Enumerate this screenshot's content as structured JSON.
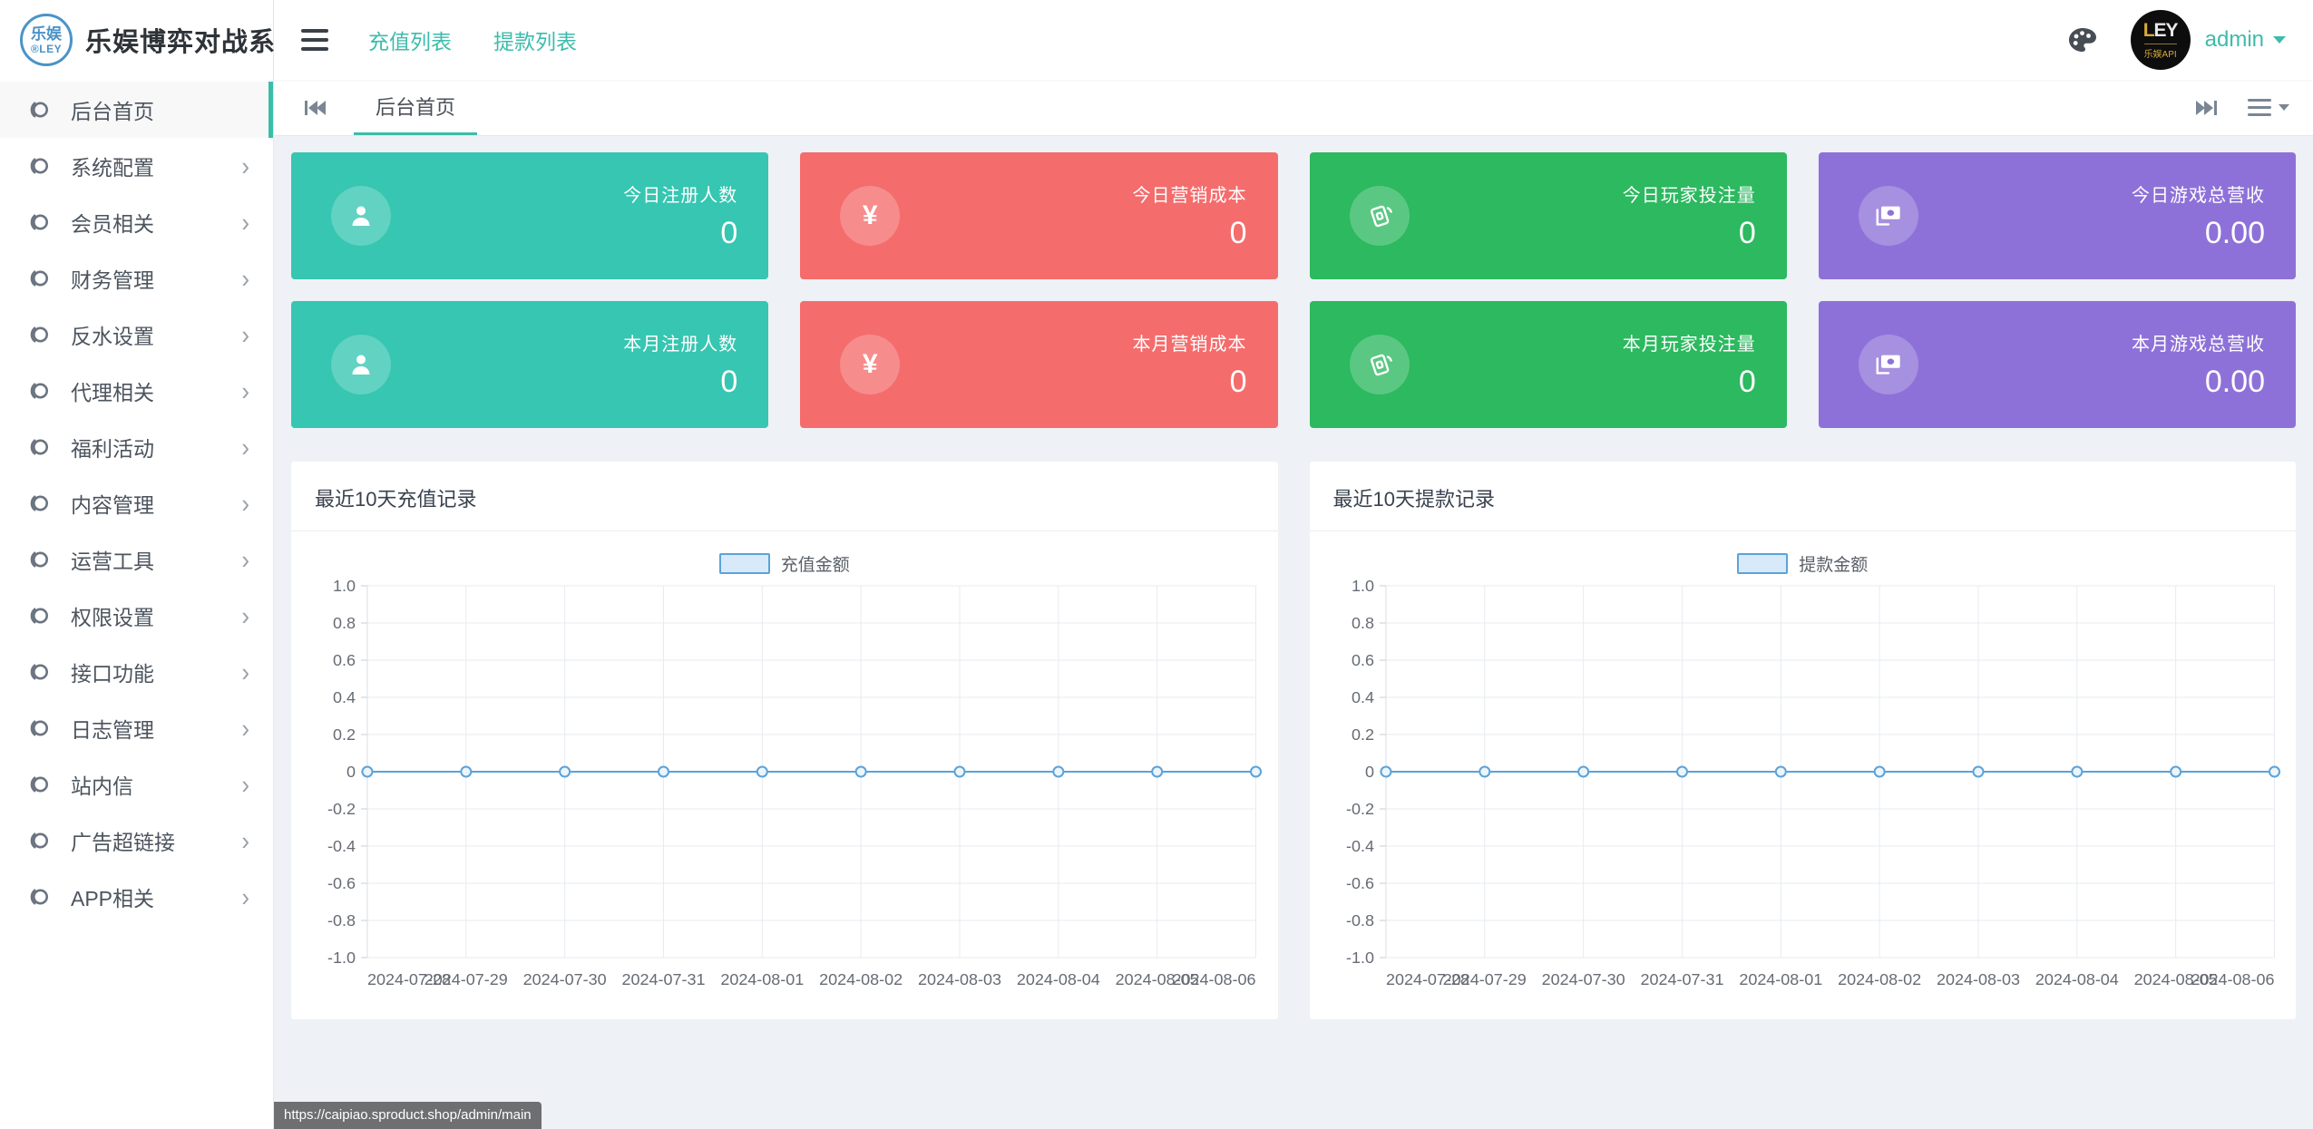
{
  "header": {
    "logo_badge_top": "乐娱",
    "logo_badge_bottom": "®LEY",
    "logo_text": "乐娱博弈对战系统",
    "nav": [
      {
        "label": "充值列表"
      },
      {
        "label": "提款列表"
      }
    ],
    "avatar_line1_gold": "L",
    "avatar_line1_rest": "EY",
    "avatar_line2": "乐娱API",
    "user_name": "admin"
  },
  "tabbar": {
    "active_tab": "后台首页"
  },
  "sidebar": {
    "items": [
      {
        "label": "后台首页",
        "active": true,
        "has_children": false
      },
      {
        "label": "系统配置",
        "active": false,
        "has_children": true
      },
      {
        "label": "会员相关",
        "active": false,
        "has_children": true
      },
      {
        "label": "财务管理",
        "active": false,
        "has_children": true
      },
      {
        "label": "反水设置",
        "active": false,
        "has_children": true
      },
      {
        "label": "代理相关",
        "active": false,
        "has_children": true
      },
      {
        "label": "福利活动",
        "active": false,
        "has_children": true
      },
      {
        "label": "内容管理",
        "active": false,
        "has_children": true
      },
      {
        "label": "运营工具",
        "active": false,
        "has_children": true
      },
      {
        "label": "权限设置",
        "active": false,
        "has_children": true
      },
      {
        "label": "接口功能",
        "active": false,
        "has_children": true
      },
      {
        "label": "日志管理",
        "active": false,
        "has_children": true
      },
      {
        "label": "站内信",
        "active": false,
        "has_children": true
      },
      {
        "label": "广告超链接",
        "active": false,
        "has_children": true
      },
      {
        "label": "APP相关",
        "active": false,
        "has_children": true
      }
    ]
  },
  "cards": [
    {
      "label": "今日注册人数",
      "value": "0",
      "color": "#36c6b1",
      "icon": "user-icon"
    },
    {
      "label": "今日营销成本",
      "value": "0",
      "color": "#f56c6c",
      "icon": "yen-icon"
    },
    {
      "label": "今日玩家投注量",
      "value": "0",
      "color": "#2cb95f",
      "icon": "notes-icon"
    },
    {
      "label": "今日游戏总营收",
      "value": "0.00",
      "color": "#8e71d8",
      "icon": "banknote-icon"
    },
    {
      "label": "本月注册人数",
      "value": "0",
      "color": "#36c6b1",
      "icon": "user-icon"
    },
    {
      "label": "本月营销成本",
      "value": "0",
      "color": "#f56c6c",
      "icon": "yen-icon"
    },
    {
      "label": "本月玩家投注量",
      "value": "0",
      "color": "#2cb95f",
      "icon": "notes-icon"
    },
    {
      "label": "本月游戏总营收",
      "value": "0.00",
      "color": "#8e71d8",
      "icon": "banknote-icon"
    }
  ],
  "chart_data": [
    {
      "type": "line",
      "title": "最近10天充值记录",
      "legend": [
        "充值金额"
      ],
      "legend_position": "top-center",
      "x": [
        "2024-07-28",
        "2024-07-29",
        "2024-07-30",
        "2024-07-31",
        "2024-08-01",
        "2024-08-02",
        "2024-08-03",
        "2024-08-04",
        "2024-08-05",
        "2024-08-06"
      ],
      "series": [
        {
          "name": "充值金额",
          "values": [
            0,
            0,
            0,
            0,
            0,
            0,
            0,
            0,
            0,
            0
          ]
        }
      ],
      "ylim": [
        -1.0,
        1.0
      ],
      "ytick_step": 0.2,
      "grid": true,
      "line_color": "#5ba3d9"
    },
    {
      "type": "line",
      "title": "最近10天提款记录",
      "legend": [
        "提款金额"
      ],
      "legend_position": "top-center",
      "x": [
        "2024-07-28",
        "2024-07-29",
        "2024-07-30",
        "2024-07-31",
        "2024-08-01",
        "2024-08-02",
        "2024-08-03",
        "2024-08-04",
        "2024-08-05",
        "2024-08-06"
      ],
      "series": [
        {
          "name": "提款金额",
          "values": [
            0,
            0,
            0,
            0,
            0,
            0,
            0,
            0,
            0,
            0
          ]
        }
      ],
      "ylim": [
        -1.0,
        1.0
      ],
      "ytick_step": 0.2,
      "grid": true,
      "line_color": "#5ba3d9"
    }
  ],
  "colors": {
    "accent_teal": "#3bbcab",
    "card_teal": "#36c6b1",
    "card_red": "#f56c6c",
    "card_green": "#2cb95f",
    "card_purple": "#8e71d8",
    "chart_line": "#5ba3d9",
    "legend_fill": "#d8eafa",
    "content_bg": "#eef1f5"
  },
  "statusbar": {
    "url": "https://caipiao.sproduct.shop/admin/main"
  }
}
